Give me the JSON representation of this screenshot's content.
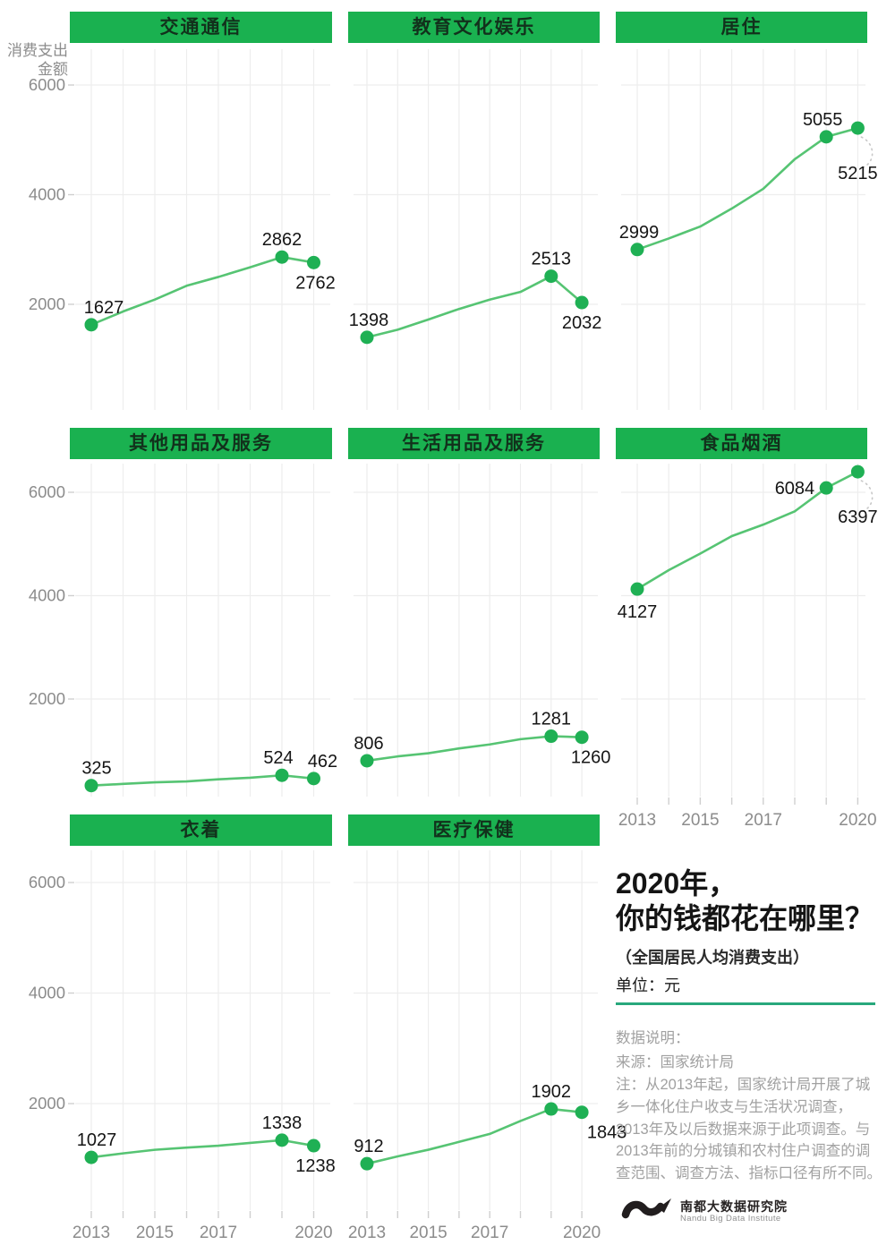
{
  "colors": {
    "header_green": "#1ab150",
    "header_text": "#12311c",
    "line_green": "#56c473",
    "dot_green": "#1fb054",
    "grid": "#ededed",
    "axis_tick": "#cfcfcf",
    "tick_text": "#8c8c8c",
    "label_text": "#151515",
    "leader_arc": "#c8c8c8",
    "rule_teal": "#28a87c",
    "notes_gray": "#a1a1a1",
    "logo_black": "#221e1f"
  },
  "axis": {
    "y_title_line1": "消费支出",
    "y_title_line2": "金额",
    "y_ticks": [
      "6000",
      "4000",
      "2000"
    ],
    "x_tick_labels": [
      "2013",
      "2015",
      "2017",
      "2020"
    ]
  },
  "chart_data": {
    "type": "line",
    "title": "2020年，你的钱都花在哪里？",
    "subtitle": "（全国居民人均消费支出）",
    "unit": "元",
    "ylabel": "消费支出金额",
    "grid": "on",
    "x": [
      2013,
      2014,
      2015,
      2016,
      2017,
      2018,
      2019,
      2020
    ],
    "x_labeled_years": [
      2013,
      2015,
      2017,
      2020
    ],
    "y_gridlines": [
      2000,
      4000,
      6000
    ],
    "ylim": [
      0,
      6700
    ],
    "facets": [
      {
        "key": "transport-communication",
        "title": "交通通信",
        "col": 0,
        "row": 0,
        "values": [
          1627,
          1869,
          2087,
          2338,
          2499,
          2675,
          2862,
          2762
        ],
        "labeled_points": [
          {
            "year": 2013,
            "value": 1627,
            "pos": "above",
            "dx": 14
          },
          {
            "year": 2019,
            "value": 2862,
            "pos": "above",
            "dx": 0
          },
          {
            "year": 2020,
            "value": 2762,
            "pos": "below",
            "dx": 2
          }
        ]
      },
      {
        "key": "education-culture-entertainment",
        "title": "教育文化娱乐",
        "col": 1,
        "row": 0,
        "values": [
          1398,
          1536,
          1723,
          1915,
          2086,
          2226,
          2513,
          2032
        ],
        "labeled_points": [
          {
            "year": 2013,
            "value": 1398,
            "pos": "above",
            "dx": 2
          },
          {
            "year": 2019,
            "value": 2513,
            "pos": "above",
            "dx": 0
          },
          {
            "year": 2020,
            "value": 2032,
            "pos": "below",
            "dx": 0
          }
        ]
      },
      {
        "key": "housing",
        "title": "居住",
        "col": 2,
        "row": 0,
        "values": [
          2999,
          3201,
          3419,
          3746,
          4107,
          4647,
          5055,
          5215
        ],
        "labeled_points": [
          {
            "year": 2013,
            "value": 2999,
            "pos": "above",
            "dx": 2
          },
          {
            "year": 2019,
            "value": 5055,
            "pos": "above",
            "dx": -4
          },
          {
            "year": 2020,
            "value": 5215,
            "pos": "below-arc",
            "dx": 0
          }
        ]
      },
      {
        "key": "other-goods-services",
        "title": "其他用品及服务",
        "col": 0,
        "row": 1,
        "values": [
          325,
          358,
          389,
          406,
          447,
          477,
          524,
          462
        ],
        "labeled_points": [
          {
            "year": 2013,
            "value": 325,
            "pos": "above",
            "dx": 6
          },
          {
            "year": 2019,
            "value": 524,
            "pos": "above",
            "dx": -4
          },
          {
            "year": 2020,
            "value": 462,
            "pos": "above",
            "dx": 10
          }
        ]
      },
      {
        "key": "household-goods-services",
        "title": "生活用品及服务",
        "col": 1,
        "row": 1,
        "values": [
          806,
          890,
          951,
          1044,
          1121,
          1223,
          1281,
          1260
        ],
        "labeled_points": [
          {
            "year": 2013,
            "value": 806,
            "pos": "above",
            "dx": 2
          },
          {
            "year": 2019,
            "value": 1281,
            "pos": "above",
            "dx": 0
          },
          {
            "year": 2020,
            "value": 1260,
            "pos": "below",
            "dx": 10
          }
        ]
      },
      {
        "key": "food-tobacco-alcohol",
        "title": "食品烟酒",
        "col": 2,
        "row": 1,
        "values": [
          4127,
          4494,
          4814,
          5151,
          5374,
          5631,
          6084,
          6397
        ],
        "labeled_points": [
          {
            "year": 2013,
            "value": 4127,
            "pos": "below",
            "dx": 0,
            "dy": 32
          },
          {
            "year": 2019,
            "value": 6084,
            "pos": "left",
            "dx": 0
          },
          {
            "year": 2020,
            "value": 6397,
            "pos": "below-arc",
            "dx": 0
          }
        ]
      },
      {
        "key": "clothing",
        "title": "衣着",
        "col": 0,
        "row": 2,
        "values": [
          1027,
          1099,
          1164,
          1203,
          1238,
          1289,
          1338,
          1238
        ],
        "labeled_points": [
          {
            "year": 2013,
            "value": 1027,
            "pos": "above",
            "dx": 6
          },
          {
            "year": 2019,
            "value": 1338,
            "pos": "above",
            "dx": 0
          },
          {
            "year": 2020,
            "value": 1238,
            "pos": "below",
            "dx": 2
          }
        ]
      },
      {
        "key": "healthcare",
        "title": "医疗保健",
        "col": 1,
        "row": 2,
        "values": [
          912,
          1045,
          1165,
          1307,
          1451,
          1685,
          1902,
          1843
        ],
        "labeled_points": [
          {
            "year": 2013,
            "value": 912,
            "pos": "above",
            "dx": 2
          },
          {
            "year": 2019,
            "value": 1902,
            "pos": "above",
            "dx": 0
          },
          {
            "year": 2020,
            "value": 1843,
            "pos": "below",
            "dx": 28
          }
        ]
      }
    ]
  },
  "title_block": {
    "title_line1": "2020年，",
    "title_line2": "你的钱都花在哪里？",
    "subtitle": "（全国居民人均消费支出）",
    "unit_label": "单位：元"
  },
  "notes": {
    "heading": "数据说明：",
    "source": "来源：国家统计局",
    "note": "注：从2013年起，国家统计局开展了城乡一体化住户收支与生活状况调查，2013年及以后数据来源于此项调查。与2013年前的分城镇和农村住户调查的调查范围、调查方法、指标口径有所不同。"
  },
  "logo": {
    "name_cn": "南都大数据研究院",
    "name_en": "Nandu Big Data Institute"
  }
}
